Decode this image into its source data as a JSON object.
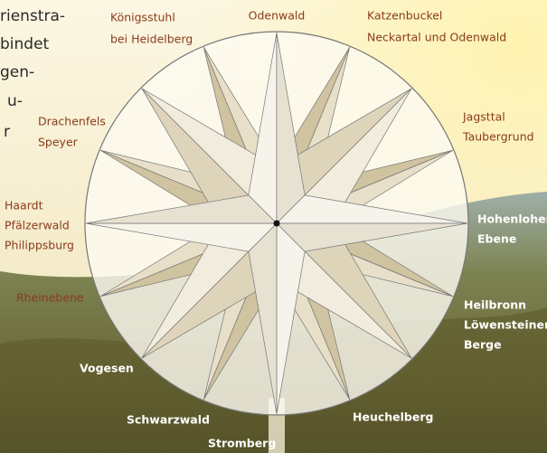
{
  "intro_text": [
    "rienstra-",
    "bindet",
    "gen-",
    "u-",
    "r"
  ],
  "labels": [
    {
      "lines": [
        "Königsstuhl",
        "bei Heidelberg"
      ]
    },
    {
      "lines": [
        "Odenwald"
      ]
    },
    {
      "lines": [
        "Katzenbuckel",
        "Neckartal und Odenwald"
      ]
    },
    {
      "lines": [
        "Drachenfels",
        "Speyer"
      ]
    },
    {
      "lines": [
        "Jagsttal",
        "Taubergrund"
      ]
    },
    {
      "lines": [
        "Haardt",
        "Pfälzerwald",
        "Philippsburg"
      ]
    },
    {
      "lines": [
        "Hohenloher",
        "Ebene"
      ]
    },
    {
      "lines": [
        "Rheinebene"
      ]
    },
    {
      "lines": [
        "Heilbronn",
        "Löwensteiner",
        "Berge"
      ]
    },
    {
      "lines": [
        "Vogesen"
      ]
    },
    {
      "lines": [
        "Schwarzwald"
      ]
    },
    {
      "lines": [
        "Heuchelberg"
      ]
    },
    {
      "lines": [
        "Stromberg"
      ]
    }
  ]
}
